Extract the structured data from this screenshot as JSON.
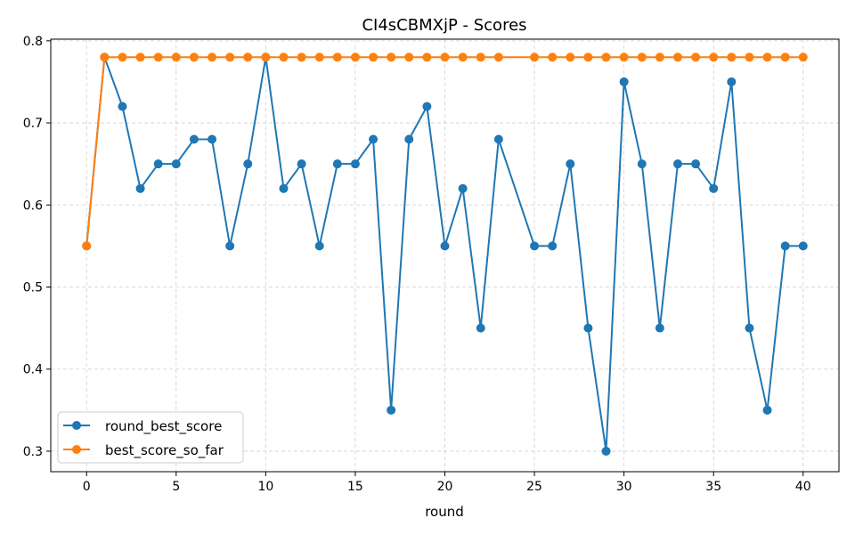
{
  "chart_data": {
    "type": "line",
    "title": "CI4sCBMXjP - Scores",
    "xlabel": "round",
    "ylabel": "",
    "xlim": [
      -2,
      42
    ],
    "ylim": [
      0.275,
      0.802
    ],
    "xticks": [
      0,
      5,
      10,
      15,
      20,
      25,
      30,
      35,
      40
    ],
    "yticks": [
      0.3,
      0.4,
      0.5,
      0.6,
      0.7,
      0.8
    ],
    "xtick_labels": [
      "0",
      "5",
      "10",
      "15",
      "20",
      "25",
      "30",
      "35",
      "40"
    ],
    "ytick_labels": [
      "0.3",
      "0.4",
      "0.5",
      "0.6",
      "0.7",
      "0.8"
    ],
    "grid": true,
    "legend_position": "lower-left",
    "series": [
      {
        "name": "round_best_score",
        "color": "#1f77b4",
        "x": [
          0,
          1,
          2,
          3,
          4,
          5,
          6,
          7,
          8,
          9,
          10,
          11,
          12,
          13,
          14,
          15,
          16,
          17,
          18,
          19,
          20,
          21,
          22,
          23,
          25,
          26,
          27,
          28,
          29,
          30,
          31,
          32,
          33,
          34,
          35,
          36,
          37,
          38,
          39,
          40
        ],
        "y": [
          0.55,
          0.78,
          0.72,
          0.62,
          0.65,
          0.65,
          0.68,
          0.68,
          0.55,
          0.65,
          0.78,
          0.62,
          0.65,
          0.55,
          0.65,
          0.65,
          0.68,
          0.35,
          0.68,
          0.72,
          0.55,
          0.62,
          0.45,
          0.68,
          0.55,
          0.55,
          0.65,
          0.45,
          0.3,
          0.75,
          0.65,
          0.45,
          0.65,
          0.65,
          0.62,
          0.75,
          0.45,
          0.35,
          0.55,
          0.55
        ]
      },
      {
        "name": "best_score_so_far",
        "color": "#ff7f0e",
        "x": [
          0,
          1,
          2,
          3,
          4,
          5,
          6,
          7,
          8,
          9,
          10,
          11,
          12,
          13,
          14,
          15,
          16,
          17,
          18,
          19,
          20,
          21,
          22,
          23,
          25,
          26,
          27,
          28,
          29,
          30,
          31,
          32,
          33,
          34,
          35,
          36,
          37,
          38,
          39,
          40
        ],
        "y": [
          0.55,
          0.78,
          0.78,
          0.78,
          0.78,
          0.78,
          0.78,
          0.78,
          0.78,
          0.78,
          0.78,
          0.78,
          0.78,
          0.78,
          0.78,
          0.78,
          0.78,
          0.78,
          0.78,
          0.78,
          0.78,
          0.78,
          0.78,
          0.78,
          0.78,
          0.78,
          0.78,
          0.78,
          0.78,
          0.78,
          0.78,
          0.78,
          0.78,
          0.78,
          0.78,
          0.78,
          0.78,
          0.78,
          0.78,
          0.78
        ]
      }
    ]
  }
}
